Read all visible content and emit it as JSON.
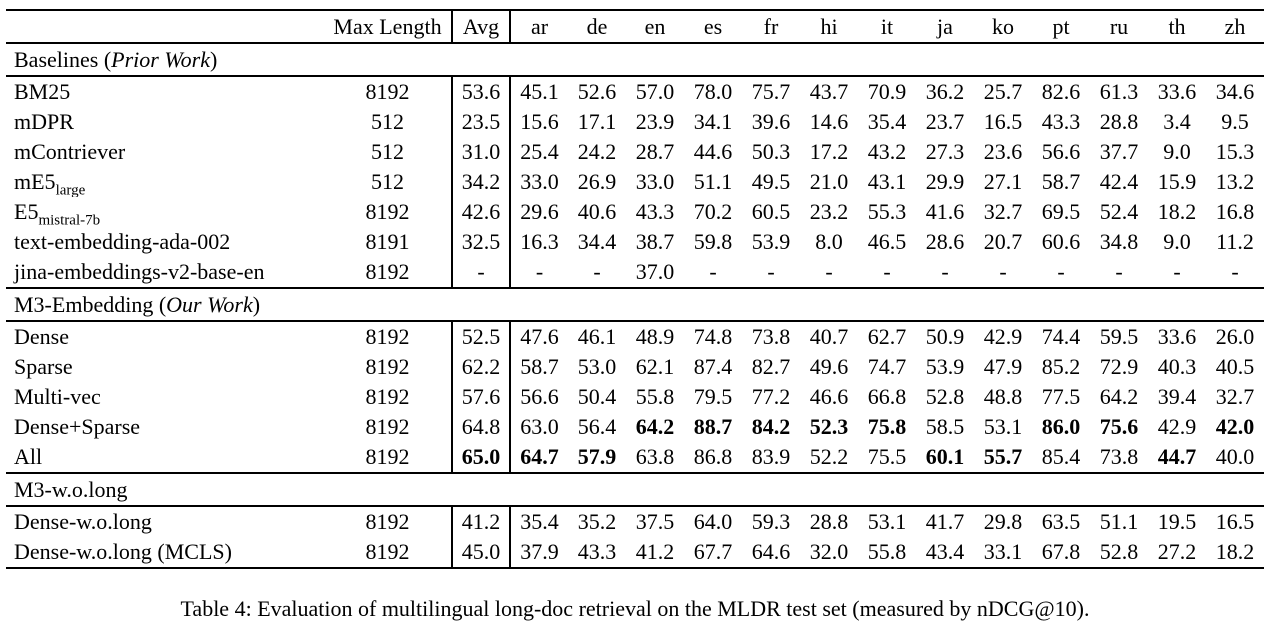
{
  "caption": "Table 4: Evaluation of multilingual long-doc retrieval on the MLDR test set (measured by nDCG@10).",
  "table": {
    "header": {
      "row_label": "",
      "max_length": "Max Length",
      "avg": "Avg",
      "languages": [
        "ar",
        "de",
        "en",
        "es",
        "fr",
        "hi",
        "it",
        "ja",
        "ko",
        "pt",
        "ru",
        "th",
        "zh"
      ]
    },
    "sections": [
      {
        "title": {
          "prefix": "Baselines (",
          "italic": "Prior Work",
          "suffix": ")"
        },
        "rows": [
          {
            "label": "BM25",
            "label_sub": "",
            "max_length": "8192",
            "avg": "53.6",
            "avg_bold": false,
            "values": [
              "45.1",
              "52.6",
              "57.0",
              "78.0",
              "75.7",
              "43.7",
              "70.9",
              "36.2",
              "25.7",
              "82.6",
              "61.3",
              "33.6",
              "34.6"
            ],
            "bold": []
          },
          {
            "label": "mDPR",
            "label_sub": "",
            "max_length": "512",
            "avg": "23.5",
            "avg_bold": false,
            "values": [
              "15.6",
              "17.1",
              "23.9",
              "34.1",
              "39.6",
              "14.6",
              "35.4",
              "23.7",
              "16.5",
              "43.3",
              "28.8",
              "3.4",
              "9.5"
            ],
            "bold": []
          },
          {
            "label": "mContriever",
            "label_sub": "",
            "max_length": "512",
            "avg": "31.0",
            "avg_bold": false,
            "values": [
              "25.4",
              "24.2",
              "28.7",
              "44.6",
              "50.3",
              "17.2",
              "43.2",
              "27.3",
              "23.6",
              "56.6",
              "37.7",
              "9.0",
              "15.3"
            ],
            "bold": []
          },
          {
            "label": "mE5",
            "label_sub": "large",
            "max_length": "512",
            "avg": "34.2",
            "avg_bold": false,
            "values": [
              "33.0",
              "26.9",
              "33.0",
              "51.1",
              "49.5",
              "21.0",
              "43.1",
              "29.9",
              "27.1",
              "58.7",
              "42.4",
              "15.9",
              "13.2"
            ],
            "bold": []
          },
          {
            "label": "E5",
            "label_sub": "mistral-7b",
            "max_length": "8192",
            "avg": "42.6",
            "avg_bold": false,
            "values": [
              "29.6",
              "40.6",
              "43.3",
              "70.2",
              "60.5",
              "23.2",
              "55.3",
              "41.6",
              "32.7",
              "69.5",
              "52.4",
              "18.2",
              "16.8"
            ],
            "bold": []
          },
          {
            "label": "text-embedding-ada-002",
            "label_sub": "",
            "max_length": "8191",
            "avg": "32.5",
            "avg_bold": false,
            "values": [
              "16.3",
              "34.4",
              "38.7",
              "59.8",
              "53.9",
              "8.0",
              "46.5",
              "28.6",
              "20.7",
              "60.6",
              "34.8",
              "9.0",
              "11.2"
            ],
            "bold": []
          },
          {
            "label": "jina-embeddings-v2-base-en",
            "label_sub": "",
            "max_length": "8192",
            "avg": "-",
            "avg_bold": false,
            "values": [
              "-",
              "-",
              "37.0",
              "-",
              "-",
              "-",
              "-",
              "-",
              "-",
              "-",
              "-",
              "-",
              "-"
            ],
            "bold": []
          }
        ]
      },
      {
        "title": {
          "prefix": "M3-Embedding (",
          "italic": "Our Work",
          "suffix": ")"
        },
        "rows": [
          {
            "label": "Dense",
            "label_sub": "",
            "max_length": "8192",
            "avg": "52.5",
            "avg_bold": false,
            "values": [
              "47.6",
              "46.1",
              "48.9",
              "74.8",
              "73.8",
              "40.7",
              "62.7",
              "50.9",
              "42.9",
              "74.4",
              "59.5",
              "33.6",
              "26.0"
            ],
            "bold": []
          },
          {
            "label": "Sparse",
            "label_sub": "",
            "max_length": "8192",
            "avg": "62.2",
            "avg_bold": false,
            "values": [
              "58.7",
              "53.0",
              "62.1",
              "87.4",
              "82.7",
              "49.6",
              "74.7",
              "53.9",
              "47.9",
              "85.2",
              "72.9",
              "40.3",
              "40.5"
            ],
            "bold": []
          },
          {
            "label": "Multi-vec",
            "label_sub": "",
            "max_length": "8192",
            "avg": "57.6",
            "avg_bold": false,
            "values": [
              "56.6",
              "50.4",
              "55.8",
              "79.5",
              "77.2",
              "46.6",
              "66.8",
              "52.8",
              "48.8",
              "77.5",
              "64.2",
              "39.4",
              "32.7"
            ],
            "bold": []
          },
          {
            "label": "Dense+Sparse",
            "label_sub": "",
            "max_length": "8192",
            "avg": "64.8",
            "avg_bold": false,
            "values": [
              "63.0",
              "56.4",
              "64.2",
              "88.7",
              "84.2",
              "52.3",
              "75.8",
              "58.5",
              "53.1",
              "86.0",
              "75.6",
              "42.9",
              "42.0"
            ],
            "bold": [
              2,
              3,
              4,
              5,
              6,
              9,
              10,
              12
            ]
          },
          {
            "label": "All",
            "label_sub": "",
            "max_length": "8192",
            "avg": "65.0",
            "avg_bold": true,
            "values": [
              "64.7",
              "57.9",
              "63.8",
              "86.8",
              "83.9",
              "52.2",
              "75.5",
              "60.1",
              "55.7",
              "85.4",
              "73.8",
              "44.7",
              "40.0"
            ],
            "bold": [
              0,
              1,
              7,
              8,
              11
            ]
          }
        ]
      },
      {
        "title": {
          "prefix": "M3-w.o.long",
          "italic": "",
          "suffix": ""
        },
        "rows": [
          {
            "label": "Dense-w.o.long",
            "label_sub": "",
            "max_length": "8192",
            "avg": "41.2",
            "avg_bold": false,
            "values": [
              "35.4",
              "35.2",
              "37.5",
              "64.0",
              "59.3",
              "28.8",
              "53.1",
              "41.7",
              "29.8",
              "63.5",
              "51.1",
              "19.5",
              "16.5"
            ],
            "bold": []
          },
          {
            "label": "Dense-w.o.long (MCLS)",
            "label_sub": "",
            "max_length": "8192",
            "avg": "45.0",
            "avg_bold": false,
            "values": [
              "37.9",
              "43.3",
              "41.2",
              "67.7",
              "64.6",
              "32.0",
              "55.8",
              "43.4",
              "33.1",
              "67.8",
              "52.8",
              "27.2",
              "18.2"
            ],
            "bold": []
          }
        ]
      }
    ]
  }
}
